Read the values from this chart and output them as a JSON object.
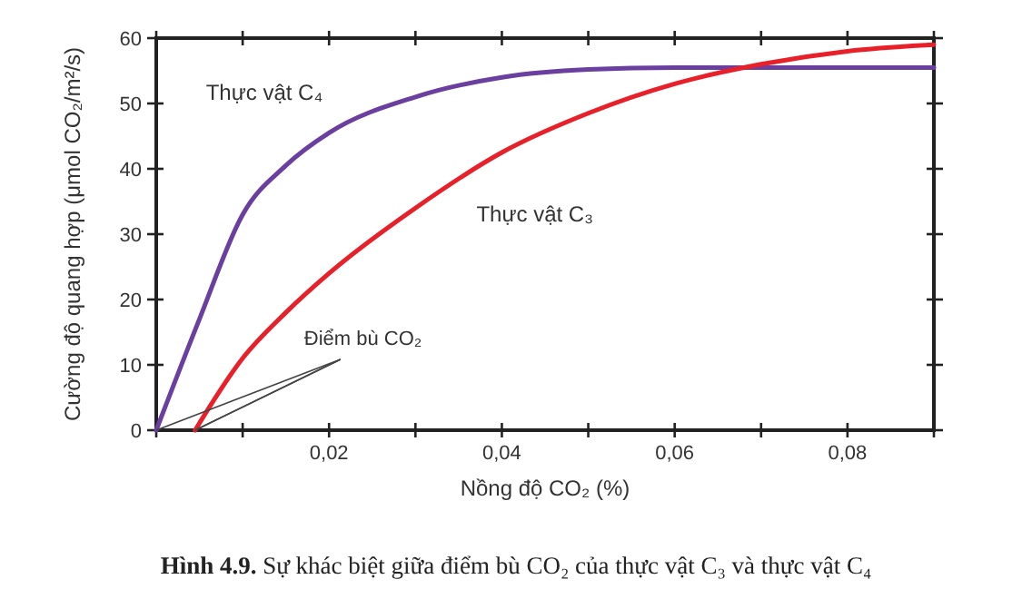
{
  "chart_data": {
    "type": "line",
    "title": "Hình 4.9. Sự khác biệt giữa điểm bù CO₂ của thực vật C₃ và thực vật C₄",
    "xlabel": "Nồng độ CO₂ (%)",
    "ylabel": "Cường độ quang hợp (μmol CO₂/m²/s)",
    "annotations": [
      {
        "text": "Điểm bù CO₂",
        "x": 0.0045,
        "y": 0
      }
    ],
    "xlim": [
      0,
      0.09
    ],
    "ylim": [
      0,
      60
    ],
    "xticks": [
      {
        "value": 0,
        "label": null
      },
      {
        "value": 0.01,
        "label": null
      },
      {
        "value": 0.02,
        "label": "0,02"
      },
      {
        "value": 0.03,
        "label": null
      },
      {
        "value": 0.04,
        "label": "0,04"
      },
      {
        "value": 0.05,
        "label": null
      },
      {
        "value": 0.06,
        "label": "0,06"
      },
      {
        "value": 0.07,
        "label": null
      },
      {
        "value": 0.08,
        "label": "0,08"
      },
      {
        "value": 0.09,
        "label": null
      }
    ],
    "yticks": [
      0,
      10,
      20,
      30,
      40,
      50,
      60
    ],
    "marker": "none",
    "line_style": "solid",
    "grid": false,
    "series": [
      {
        "name": "Thực vật C₄",
        "color": "#6a3fa0",
        "x": [
          0,
          0.005,
          0.01,
          0.015,
          0.02,
          0.03,
          0.04,
          0.05,
          0.06,
          0.09
        ],
        "values": [
          0,
          17,
          33,
          40.5,
          45.5,
          51,
          54,
          55.2,
          55.5,
          55.5
        ]
      },
      {
        "name": "Thực vật C₃",
        "color": "#e8202a",
        "x": [
          0.0045,
          0.01,
          0.015,
          0.02,
          0.03,
          0.04,
          0.05,
          0.06,
          0.07,
          0.08,
          0.09
        ],
        "values": [
          0,
          11,
          18,
          24,
          34,
          42.5,
          48.5,
          53,
          56,
          58,
          59
        ]
      }
    ]
  }
}
